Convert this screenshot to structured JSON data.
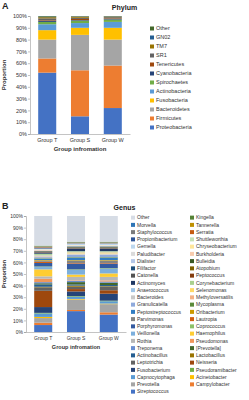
{
  "chart_data": [
    {
      "type": "bar",
      "stacked": true,
      "grid": false,
      "legend": "right",
      "annotations": [
        "A"
      ],
      "title": "Phylum",
      "xlabel": "Group infromation",
      "ylabel": "Proportion",
      "categories": [
        "Group T",
        "Group S",
        "Group W"
      ],
      "ylim": [
        0,
        100
      ],
      "yticks": [
        {
          "value": 0,
          "label": "0%"
        },
        {
          "value": 10,
          "label": "10%"
        },
        {
          "value": 20,
          "label": "20%"
        },
        {
          "value": 30,
          "label": "30%"
        },
        {
          "value": 40,
          "label": "40%"
        },
        {
          "value": 50,
          "label": "50%"
        },
        {
          "value": 60,
          "label": "60%"
        },
        {
          "value": 70,
          "label": "70%"
        },
        {
          "value": 80,
          "label": "80%"
        },
        {
          "value": 90,
          "label": "90%"
        },
        {
          "value": 100,
          "label": "100%"
        }
      ],
      "series": [
        {
          "name": "Proteobacteria",
          "color": "#4472c4",
          "values": [
            52,
            15,
            22
          ]
        },
        {
          "name": "Firmicutes",
          "color": "#ed7d31",
          "values": [
            12,
            39,
            36
          ]
        },
        {
          "name": "Bacteroidetes",
          "color": "#a5a5a5",
          "values": [
            16,
            30,
            22
          ]
        },
        {
          "name": "Fusobacteria",
          "color": "#ffc000",
          "values": [
            8,
            6,
            10
          ]
        },
        {
          "name": "Actinobacteria",
          "color": "#5b9bd5",
          "values": [
            5,
            4,
            5
          ]
        },
        {
          "name": "Spirochaetes",
          "color": "#70ad47",
          "values": [
            2,
            2,
            2
          ]
        },
        {
          "name": "Cyanobacteria",
          "color": "#264478",
          "values": [
            1,
            0.5,
            0.5
          ]
        },
        {
          "name": "Tenericutes",
          "color": "#9e480e",
          "values": [
            0.5,
            1,
            0.5
          ]
        },
        {
          "name": "SR1",
          "color": "#636363",
          "values": [
            1.5,
            1,
            1
          ]
        },
        {
          "name": "TM7",
          "color": "#997300",
          "values": [
            1,
            1,
            0.5
          ]
        },
        {
          "name": "GN02",
          "color": "#255e91",
          "values": [
            0.5,
            0.3,
            0.3
          ]
        },
        {
          "name": "Other",
          "color": "#43682b",
          "values": [
            0.5,
            0.2,
            0.2
          ]
        }
      ]
    },
    {
      "type": "bar",
      "stacked": true,
      "grid": false,
      "legend": "right",
      "annotations": [
        "B"
      ],
      "title": "Genus",
      "xlabel": "Group infromation",
      "ylabel": "Proportion",
      "categories": [
        "Group T",
        "Group S",
        "Group W"
      ],
      "ylim": [
        0,
        100
      ],
      "yticks": [
        {
          "value": 0,
          "label": "0%"
        },
        {
          "value": 10,
          "label": "10%"
        },
        {
          "value": 20,
          "label": "20%"
        },
        {
          "value": 30,
          "label": "30%"
        },
        {
          "value": 40,
          "label": "40%"
        },
        {
          "value": 50,
          "label": "50%"
        },
        {
          "value": 60,
          "label": "60%"
        },
        {
          "value": 70,
          "label": "70%"
        },
        {
          "value": 80,
          "label": "80%"
        },
        {
          "value": 90,
          "label": "90%"
        },
        {
          "value": 100,
          "label": "100%"
        }
      ],
      "series": [
        {
          "name": "Streptococcus",
          "color": "#4472c4",
          "values": [
            6,
            18,
            15
          ]
        },
        {
          "name": "Campylobacter",
          "color": "#ed7d31",
          "values": [
            2,
            1,
            2
          ]
        },
        {
          "name": "Prevotella",
          "color": "#a5a5a5",
          "values": [
            4,
            9,
            7
          ]
        },
        {
          "name": "Acinetobacter",
          "color": "#ffc000",
          "values": [
            1,
            0.5,
            0.5
          ]
        },
        {
          "name": "Capnocytophaga",
          "color": "#5b9bd5",
          "values": [
            3,
            2,
            2
          ]
        },
        {
          "name": "Pseudoramibacter",
          "color": "#70ad47",
          "values": [
            0.5,
            0.5,
            0.5
          ]
        },
        {
          "name": "Fusobacterium",
          "color": "#264478",
          "values": [
            5,
            4,
            6
          ]
        },
        {
          "name": "Neisseria",
          "color": "#9e480e",
          "values": [
            14,
            2,
            3
          ]
        },
        {
          "name": "Leptotrichia",
          "color": "#636363",
          "values": [
            3,
            2,
            3
          ]
        },
        {
          "name": "Lactobacillus",
          "color": "#997300",
          "values": [
            0.5,
            1,
            0.5
          ]
        },
        {
          "name": "Actinobacillus",
          "color": "#255e91",
          "values": [
            2,
            1,
            1
          ]
        },
        {
          "name": "[Prevotella]",
          "color": "#43682b",
          "values": [
            1,
            2,
            2
          ]
        },
        {
          "name": "Treponema",
          "color": "#698ed0",
          "values": [
            1,
            1,
            1
          ]
        },
        {
          "name": "Pseudomonas",
          "color": "#f1975a",
          "values": [
            3,
            0.5,
            1
          ]
        },
        {
          "name": "Rothia",
          "color": "#b7b7b7",
          "values": [
            2,
            3,
            3
          ]
        },
        {
          "name": "Haemophilus",
          "color": "#ffcd33",
          "values": [
            6,
            2,
            3
          ]
        },
        {
          "name": "Veillonella",
          "color": "#7cafdd",
          "values": [
            2,
            4,
            4
          ]
        },
        {
          "name": "Coprococcus",
          "color": "#8cc168",
          "values": [
            0.5,
            0.5,
            0.5
          ]
        },
        {
          "name": "Porphyromonas",
          "color": "#335aa1",
          "values": [
            3,
            5,
            4
          ]
        },
        {
          "name": "Lautropia",
          "color": "#d26012",
          "values": [
            1,
            0.5,
            0.5
          ]
        },
        {
          "name": "Parvimonas",
          "color": "#848484",
          "values": [
            1,
            2,
            2
          ]
        },
        {
          "name": "Oribacterium",
          "color": "#cc9a00",
          "values": [
            0.5,
            0.5,
            0.5
          ]
        },
        {
          "name": "Peptostreptococcus",
          "color": "#327dc2",
          "values": [
            1,
            2,
            2
          ]
        },
        {
          "name": "Mycoplasma",
          "color": "#5a8a39",
          "values": [
            0.5,
            0.5,
            0.5
          ]
        },
        {
          "name": "Granulicatella",
          "color": "#8faadc",
          "values": [
            1,
            2,
            2
          ]
        },
        {
          "name": "Methyloversatilis",
          "color": "#f4b183",
          "values": [
            0.5,
            0.2,
            0.2
          ]
        },
        {
          "name": "Bacteroides",
          "color": "#c9c9c9",
          "values": [
            0.5,
            1,
            1
          ]
        },
        {
          "name": "Selenomonas",
          "color": "#ffd966",
          "values": [
            0.5,
            1,
            1
          ]
        },
        {
          "name": "Anaerococcus",
          "color": "#9dc3e6",
          "values": [
            0.5,
            0.5,
            0.5
          ]
        },
        {
          "name": "Corynebacterium",
          "color": "#a9d18e",
          "values": [
            1,
            0.5,
            0.5
          ]
        },
        {
          "name": "Actinomyces",
          "color": "#203864",
          "values": [
            1,
            2,
            2
          ]
        },
        {
          "name": "Peptococcus",
          "color": "#843c0c",
          "values": [
            0.3,
            0.3,
            0.3
          ]
        },
        {
          "name": "Catonella",
          "color": "#525252",
          "values": [
            0.3,
            0.5,
            0.5
          ]
        },
        {
          "name": "Atopobium",
          "color": "#7f6000",
          "values": [
            0.3,
            0.5,
            0.5
          ]
        },
        {
          "name": "Filifactor",
          "color": "#1f4e79",
          "values": [
            0.3,
            0.5,
            0.5
          ]
        },
        {
          "name": "Bulleidia",
          "color": "#385723",
          "values": [
            0.2,
            0.3,
            0.3
          ]
        },
        {
          "name": "Dialister",
          "color": "#b4c7e7",
          "values": [
            0.3,
            0.5,
            0.5
          ]
        },
        {
          "name": "Burkholderia",
          "color": "#f8cbad",
          "values": [
            0.5,
            0.2,
            0.2
          ]
        },
        {
          "name": "Paludibacter",
          "color": "#dbdbdb",
          "values": [
            0.2,
            0.3,
            0.3
          ]
        },
        {
          "name": "Chryseobacterium",
          "color": "#ffe699",
          "values": [
            0.3,
            0.2,
            0.2
          ]
        },
        {
          "name": "Gemella",
          "color": "#bdd7ee",
          "values": [
            0.5,
            1,
            1
          ]
        },
        {
          "name": "Shuttleworthia",
          "color": "#c5e0b4",
          "values": [
            0.2,
            0.2,
            0.2
          ]
        },
        {
          "name": "Propionibacterium",
          "color": "#2f5597",
          "values": [
            0.5,
            0.2,
            0.2
          ]
        },
        {
          "name": "Serratia",
          "color": "#c55a11",
          "values": [
            0.5,
            0.1,
            0.1
          ]
        },
        {
          "name": "Staphylococcus",
          "color": "#7b7b7b",
          "values": [
            0.5,
            0.2,
            0.2
          ]
        },
        {
          "name": "Tannerella",
          "color": "#bf9000",
          "values": [
            0.3,
            0.5,
            0.5
          ]
        },
        {
          "name": "Morvella",
          "color": "#2e75b6",
          "values": [
            0.2,
            0.3,
            0.3
          ]
        },
        {
          "name": "Kingella",
          "color": "#548235",
          "values": [
            0.5,
            0.3,
            0.3
          ]
        },
        {
          "name": "Other",
          "color": "#d6dce5",
          "values": [
            25.6,
            22.2,
            22.2
          ]
        }
      ]
    }
  ]
}
